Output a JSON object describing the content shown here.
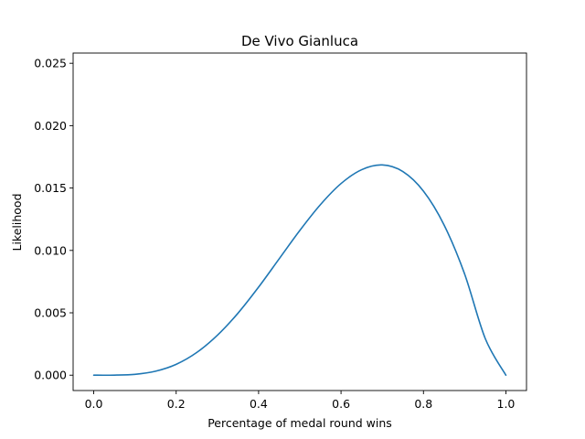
{
  "chart_data": {
    "type": "line",
    "title": "De Vivo Gianluca",
    "xlabel": "Percentage of medal round wins",
    "ylabel": "Likelihood",
    "xlim": [
      -0.05,
      1.05
    ],
    "ylim": [
      -0.00123,
      0.02582
    ],
    "xticks": [
      0.0,
      0.2,
      0.4,
      0.6,
      0.8,
      1.0
    ],
    "xtick_labels": [
      "0.0",
      "0.2",
      "0.4",
      "0.6",
      "0.8",
      "1.0"
    ],
    "yticks": [
      0.0,
      0.005,
      0.01,
      0.015,
      0.02,
      0.025
    ],
    "ytick_labels": [
      "0.000",
      "0.005",
      "0.010",
      "0.015",
      "0.020",
      "0.025"
    ],
    "grid": false,
    "series": [
      {
        "color": "#1f77b4",
        "x": [
          0.0,
          0.05,
          0.1,
          0.15,
          0.2,
          0.25,
          0.3,
          0.35,
          0.4,
          0.45,
          0.5,
          0.55,
          0.6,
          0.65,
          0.7,
          0.75,
          0.8,
          0.85,
          0.9,
          0.95,
          1.0
        ],
        "y": [
          0.0,
          5e-06,
          7e-05,
          0.00032,
          0.00087,
          0.00182,
          0.0032,
          0.00497,
          0.00706,
          0.00933,
          0.0116,
          0.01367,
          0.01536,
          0.01647,
          0.01685,
          0.01632,
          0.01475,
          0.01204,
          0.0081,
          0.00293,
          0.0
        ]
      }
    ]
  }
}
